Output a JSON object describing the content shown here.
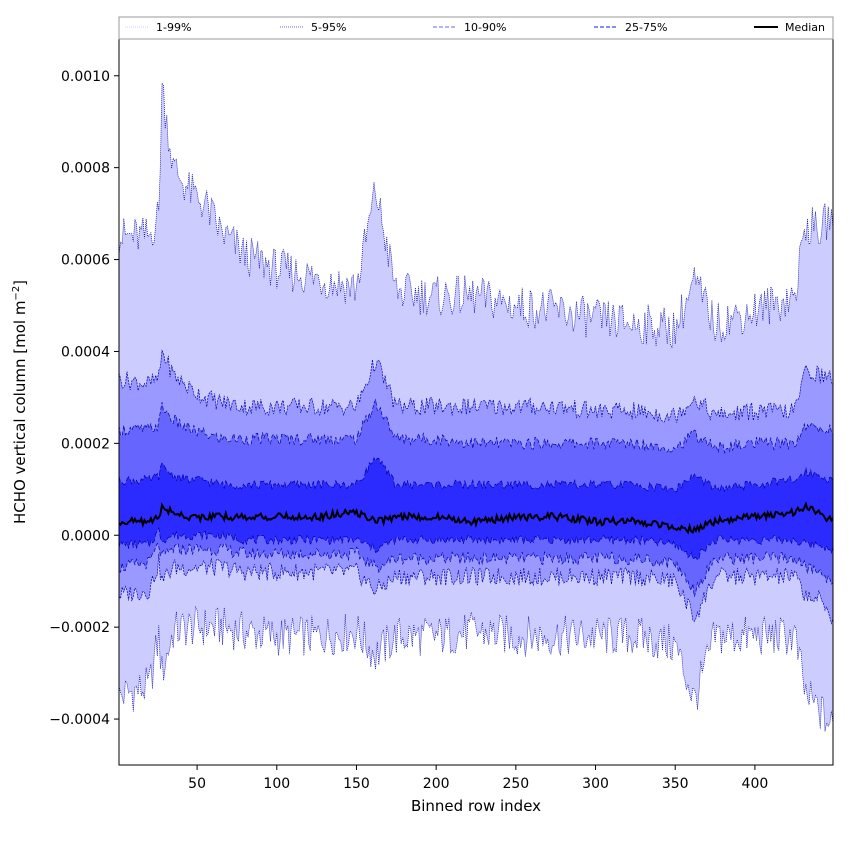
{
  "chart_data": {
    "type": "area",
    "title": "",
    "xlabel": "Binned row index",
    "ylabel_main": "HCHO vertical column [mol m",
    "ylabel_sup": "−2",
    "ylabel_end": "]",
    "xlim": [
      1,
      449
    ],
    "ylim": [
      -0.0005,
      0.00108
    ],
    "x_ticks": [
      50,
      100,
      150,
      200,
      250,
      300,
      350,
      400
    ],
    "y_ticks": [
      -0.0004,
      -0.0002,
      0.0,
      0.0002,
      0.0004,
      0.0006,
      0.0008,
      0.001
    ],
    "y_tick_labels": [
      "−0.0004",
      "−0.0002",
      "0.0000",
      "0.0002",
      "0.0004",
      "0.0006",
      "0.0008",
      "0.0010"
    ],
    "x_tick_labels": [
      "50",
      "100",
      "150",
      "200",
      "250",
      "300",
      "350",
      "400"
    ],
    "grid": false,
    "legend_position": "top, full-width",
    "anchor_x": [
      1,
      20,
      26,
      28,
      35,
      45,
      55,
      65,
      80,
      100,
      125,
      150,
      162,
      175,
      200,
      225,
      250,
      275,
      300,
      325,
      350,
      362,
      375,
      400,
      425,
      432,
      440,
      449
    ],
    "series": [
      {
        "name": "1-99%",
        "band": "outer",
        "color": "#ccccff",
        "low": [
          -0.00035,
          -0.00033,
          -0.00022,
          -0.0003,
          -0.00021,
          -0.0002,
          -0.0002,
          -0.0002,
          -0.00021,
          -0.00022,
          -0.00022,
          -0.00021,
          -0.00026,
          -0.00022,
          -0.00022,
          -0.00021,
          -0.00022,
          -0.00022,
          -0.00022,
          -0.00022,
          -0.00024,
          -0.00036,
          -0.00022,
          -0.00022,
          -0.00022,
          -0.00035,
          -0.00038,
          -0.00042
        ],
        "high": [
          0.00065,
          0.00065,
          0.0007,
          0.00098,
          0.0008,
          0.00075,
          0.00072,
          0.00066,
          0.00061,
          0.00058,
          0.00056,
          0.00054,
          0.00075,
          0.00053,
          0.00052,
          0.00052,
          0.0005,
          0.00049,
          0.00047,
          0.00046,
          0.00045,
          0.00055,
          0.00046,
          0.00049,
          0.00052,
          0.00068,
          0.00066,
          0.0007
        ]
      },
      {
        "name": "5-95%",
        "band": "second",
        "color": "#9999ff",
        "low": [
          -0.00013,
          -0.00012,
          -6e-05,
          -0.0001,
          -7e-05,
          -7e-05,
          -7e-05,
          -7e-05,
          -8e-05,
          -8e-05,
          -8e-05,
          -8e-05,
          -0.00012,
          -9e-05,
          -9e-05,
          -9e-05,
          -9e-05,
          -9e-05,
          -9e-05,
          -9e-05,
          -0.0001,
          -0.00018,
          -9e-05,
          -9e-05,
          -9e-05,
          -0.00013,
          -0.00014,
          -0.00018
        ],
        "high": [
          0.00034,
          0.00033,
          0.00034,
          0.0004,
          0.00035,
          0.00032,
          0.0003,
          0.00029,
          0.00028,
          0.00028,
          0.00028,
          0.00028,
          0.00038,
          0.00028,
          0.00028,
          0.00028,
          0.00028,
          0.00028,
          0.00027,
          0.00027,
          0.00026,
          0.0003,
          0.00026,
          0.00027,
          0.00027,
          0.00036,
          0.00035,
          0.00034
        ]
      },
      {
        "name": "10-90%",
        "band": "third",
        "color": "#6666ff",
        "low": [
          -7e-05,
          -6e-05,
          -2e-05,
          -5e-05,
          -3e-05,
          -3e-05,
          -3e-05,
          -3e-05,
          -4e-05,
          -4e-05,
          -4e-05,
          -4e-05,
          -7e-05,
          -5e-05,
          -5e-05,
          -5e-05,
          -5e-05,
          -5e-05,
          -5e-05,
          -5e-05,
          -6e-05,
          -0.00012,
          -5e-05,
          -5e-05,
          -5e-05,
          -7e-05,
          -8e-05,
          -0.0001
        ],
        "high": [
          0.00023,
          0.00023,
          0.00024,
          0.00028,
          0.00025,
          0.00023,
          0.00022,
          0.00021,
          0.00021,
          0.00021,
          0.00021,
          0.00021,
          0.00029,
          0.00021,
          0.00021,
          0.0002,
          0.0002,
          0.0002,
          0.0002,
          0.0002,
          0.00019,
          0.00022,
          0.00019,
          0.0002,
          0.0002,
          0.00024,
          0.00023,
          0.00023
        ]
      },
      {
        "name": "25-75%",
        "band": "inner",
        "color": "#2b2bff",
        "low": [
          -2e-05,
          -2e-05,
          1e-05,
          -1e-05,
          0.0,
          0.0,
          0.0,
          0.0,
          -1e-05,
          -1e-05,
          -1e-05,
          -1e-05,
          -3e-05,
          -1e-05,
          -1e-05,
          -1e-05,
          -1e-05,
          -1e-05,
          -1e-05,
          -1e-05,
          -2e-05,
          -5e-05,
          -1e-05,
          -1e-05,
          -1e-05,
          -2e-05,
          -2e-05,
          -3e-05
        ],
        "high": [
          0.00012,
          0.00012,
          0.00013,
          0.00015,
          0.00013,
          0.00012,
          0.00012,
          0.00011,
          0.00011,
          0.00011,
          0.00011,
          0.00011,
          0.00017,
          0.00011,
          0.00011,
          0.00011,
          0.00011,
          0.00011,
          0.00011,
          0.00011,
          0.0001,
          0.00013,
          0.0001,
          0.00011,
          0.00012,
          0.00014,
          0.00013,
          0.00012
        ]
      },
      {
        "name": "Median",
        "band": "line",
        "color": "#000000",
        "values": [
          3e-05,
          3e-05,
          4e-05,
          6e-05,
          5e-05,
          4e-05,
          4e-05,
          4e-05,
          4e-05,
          4e-05,
          4e-05,
          5e-05,
          3e-05,
          4e-05,
          4e-05,
          3e-05,
          4e-05,
          4e-05,
          3e-05,
          3e-05,
          2e-05,
          1e-05,
          3e-05,
          4e-05,
          5e-05,
          6e-05,
          5e-05,
          3e-05
        ]
      }
    ]
  }
}
